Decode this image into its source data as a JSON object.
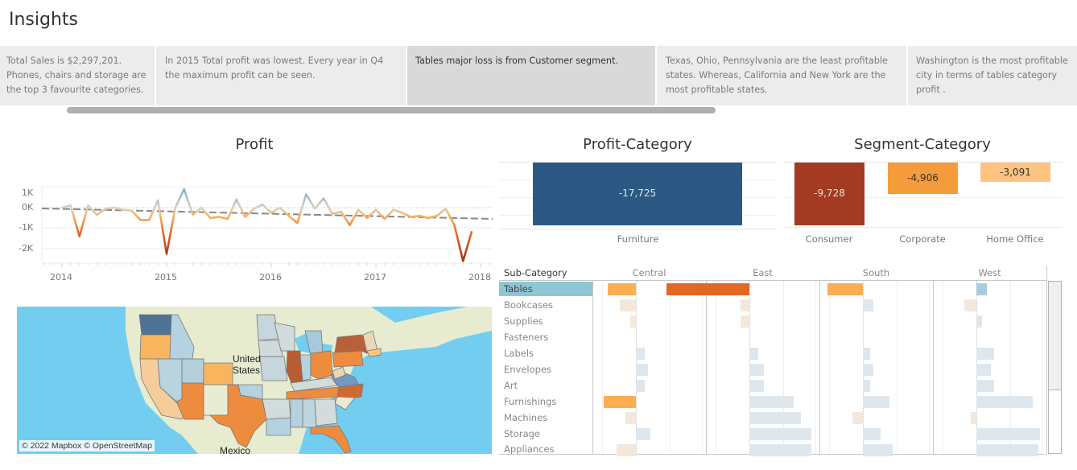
{
  "page": {
    "title": "Insights"
  },
  "insights": [
    {
      "text": "Total Sales is $2,297,201. Phones, chairs and storage are the top 3 favourite categories.",
      "selected": false
    },
    {
      "text": "In 2015 Total profit was lowest. Every year in Q4 the maximum profit can be seen.",
      "selected": false
    },
    {
      "text": "Tables major loss is from Customer segment.",
      "selected": true
    },
    {
      "text": "Texas, Ohio, Pennsylvania are the least profitable states. Whereas, California and New York are the most profitable states.",
      "selected": false
    },
    {
      "text": "Washington is the most profitable city in terms of tables category profit .",
      "selected": false
    }
  ],
  "profit_chart": {
    "title": "Profit",
    "y_ticks": [
      "1K",
      "0K",
      "-1K",
      "-2K"
    ],
    "x_ticks": [
      "2014",
      "2015",
      "2016",
      "2017",
      "2018"
    ]
  },
  "profit_category": {
    "title": "Profit-Category",
    "bar_label": "-17,725",
    "category": "Furniture",
    "color": "#2b5983"
  },
  "segment_category": {
    "title": "Segment-Category",
    "bars": [
      {
        "label": "Consumer",
        "value_label": "-9,728",
        "color": "#a23b22"
      },
      {
        "label": "Corporate",
        "value_label": "-4,906",
        "color": "#f59b3c"
      },
      {
        "label": "Home Office",
        "value_label": "-3,091",
        "color": "#fdc481"
      }
    ]
  },
  "subcategory_table": {
    "header": "Sub-Category",
    "regions": [
      "Central",
      "East",
      "South",
      "West"
    ],
    "rows": [
      "Tables",
      "Bookcases",
      "Supplies",
      "Fasteners",
      "Labels",
      "Envelopes",
      "Art",
      "Furnishings",
      "Machines",
      "Storage",
      "Appliances"
    ],
    "selected_row": "Tables"
  },
  "map": {
    "attribution": "© 2022 Mapbox © OpenStreetMap",
    "labels": {
      "country": "United States",
      "country_line1": "United",
      "country_line2": "States",
      "mexico": "Mexico"
    }
  },
  "chart_data": [
    {
      "type": "line",
      "title": "Profit",
      "xlabel": "",
      "ylabel": "",
      "x_ticks": [
        "2014",
        "2015",
        "2016",
        "2017",
        "2018"
      ],
      "y_ticks": [
        "1K",
        "0K",
        "-1K",
        "-2K"
      ],
      "ylim": [
        -2800,
        1300
      ],
      "trend_line": {
        "style": "dashed",
        "start": -50,
        "end": -600
      },
      "reference_line": {
        "value": 0,
        "style": "dotted"
      },
      "grid": true,
      "x": [
        "2014-01",
        "2014-02",
        "2014-03",
        "2014-04",
        "2014-05",
        "2014-06",
        "2014-07",
        "2014-08",
        "2014-09",
        "2014-10",
        "2014-11",
        "2014-12",
        "2015-01",
        "2015-02",
        "2015-03",
        "2015-04",
        "2015-05",
        "2015-06",
        "2015-07",
        "2015-08",
        "2015-09",
        "2015-10",
        "2015-11",
        "2015-12",
        "2016-01",
        "2016-02",
        "2016-03",
        "2016-04",
        "2016-05",
        "2016-06",
        "2016-07",
        "2016-08",
        "2016-09",
        "2016-10",
        "2016-11",
        "2016-12",
        "2017-01",
        "2017-02",
        "2017-03",
        "2017-04",
        "2017-05",
        "2017-06",
        "2017-07",
        "2017-08",
        "2017-09",
        "2017-10",
        "2017-11",
        "2017-12"
      ],
      "values": [
        0,
        100,
        -1400,
        100,
        -350,
        -50,
        0,
        -100,
        -150,
        -600,
        -600,
        350,
        -2250,
        0,
        900,
        -350,
        0,
        -500,
        -450,
        -550,
        400,
        -450,
        -50,
        150,
        -250,
        0,
        -400,
        -750,
        650,
        -50,
        450,
        -300,
        -200,
        -850,
        -100,
        -500,
        -100,
        -550,
        -100,
        -250,
        -450,
        -400,
        -500,
        -400,
        -50,
        -850,
        -2600,
        -1150
      ]
    },
    {
      "type": "bar",
      "title": "Profit-Category",
      "categories": [
        "Furniture"
      ],
      "values": [
        -17725
      ],
      "xlabel": "",
      "ylabel": ""
    },
    {
      "type": "bar",
      "title": "Segment-Category",
      "categories": [
        "Consumer",
        "Corporate",
        "Home Office"
      ],
      "values": [
        -9728,
        -4906,
        -3091
      ],
      "xlabel": "",
      "ylabel": ""
    },
    {
      "type": "bar",
      "title": "Sub-Category by Region",
      "categories": [
        "Tables",
        "Bookcases",
        "Supplies",
        "Fasteners",
        "Labels",
        "Envelopes",
        "Art",
        "Furnishings",
        "Machines",
        "Storage",
        "Appliances"
      ],
      "series": [
        {
          "name": "Central",
          "values": [
            -16,
            -9,
            -3,
            0,
            5,
            7,
            5,
            -18,
            -6,
            8,
            -11
          ]
        },
        {
          "name": "East",
          "values": [
            -47,
            -5,
            -5,
            0,
            5,
            8,
            8,
            25,
            29,
            35,
            35
          ]
        },
        {
          "name": "South",
          "values": [
            -20,
            6,
            0,
            0,
            4,
            6,
            4,
            15,
            -6,
            10,
            17
          ]
        },
        {
          "name": "West",
          "values": [
            6,
            -7,
            3,
            0,
            10,
            8,
            10,
            32,
            -3,
            36,
            35
          ]
        }
      ]
    }
  ]
}
